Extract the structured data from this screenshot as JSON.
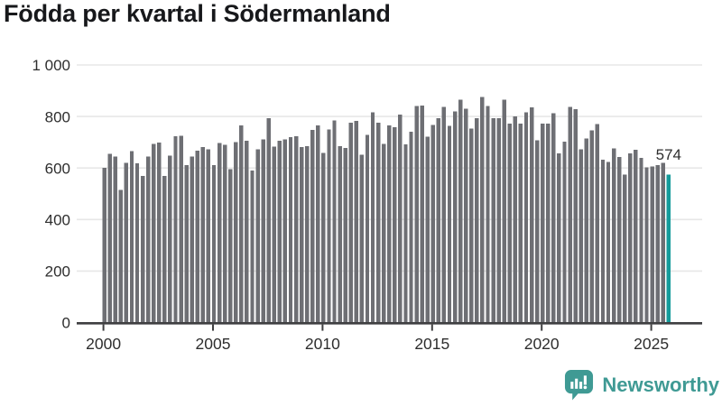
{
  "chart_data": {
    "type": "bar",
    "title": "Födda per kvartal i Södermanland",
    "x_range": {
      "start": "2000Q1",
      "end": "2025Q4",
      "freq": "quarterly"
    },
    "series": [
      {
        "name": "Födda per kvartal",
        "values": [
          600,
          655,
          645,
          515,
          620,
          665,
          618,
          570,
          645,
          693,
          699,
          570,
          648,
          724,
          725,
          611,
          645,
          667,
          681,
          672,
          612,
          697,
          690,
          595,
          700,
          765,
          706,
          590,
          673,
          711,
          794,
          683,
          705,
          711,
          719,
          723,
          681,
          685,
          747,
          765,
          659,
          749,
          785,
          685,
          677,
          775,
          783,
          652,
          729,
          816,
          776,
          693,
          765,
          758,
          808,
          691,
          741,
          841,
          842,
          721,
          767,
          793,
          837,
          763,
          820,
          866,
          831,
          753,
          794,
          875,
          841,
          793,
          794,
          865,
          773,
          800,
          772,
          817,
          835,
          708,
          773,
          773,
          813,
          656,
          702,
          837,
          828,
          673,
          714,
          746,
          770,
          632,
          624,
          676,
          643,
          575,
          656,
          670,
          639,
          602,
          606,
          612,
          620,
          574
        ]
      }
    ],
    "highlight": {
      "index": 103,
      "label": "574"
    },
    "ylim": [
      0,
      1000
    ],
    "yticks": [
      0,
      200,
      400,
      600,
      800,
      1000
    ],
    "ytick_labels": [
      "0",
      "200",
      "400",
      "600",
      "800",
      "1 000"
    ],
    "xticks": [
      2000,
      2005,
      2010,
      2015,
      2020,
      2025
    ],
    "xtick_labels": [
      "2000",
      "2005",
      "2010",
      "2015",
      "2020",
      "2025"
    ],
    "grid": true,
    "legend": false
  },
  "colors": {
    "bar": "#6e6f74",
    "highlight": "#149b9b",
    "axis": "#3f3f41",
    "grid": "#e7e7e7",
    "tick_label": "#2e2e2e",
    "value_label": "#2e2e2e",
    "title": "#17181b",
    "brand": "#3f9a94"
  },
  "footer": {
    "brand": "Newsworthy"
  }
}
